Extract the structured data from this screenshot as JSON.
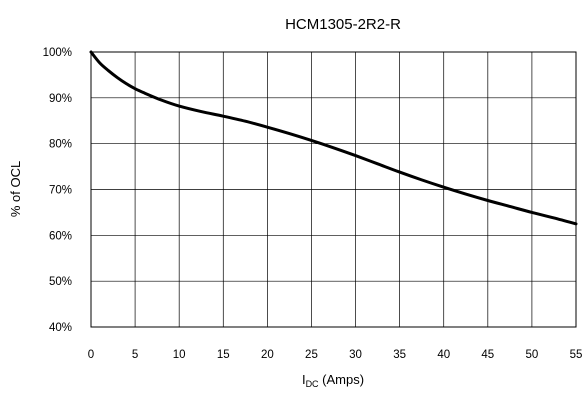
{
  "chart_data": {
    "type": "line",
    "title": "HCM1305-2R2-R",
    "xlabel": {
      "main": "I",
      "sub": "DC",
      "suffix": " (Amps)"
    },
    "ylabel": "% of OCL",
    "xlim": [
      0,
      55
    ],
    "ylim": [
      40,
      100
    ],
    "x_ticks": [
      0,
      5,
      10,
      15,
      20,
      25,
      30,
      35,
      40,
      45,
      50,
      55
    ],
    "x_tick_labels": [
      "0",
      "5",
      "10",
      "15",
      "20",
      "25",
      "30",
      "35",
      "40",
      "45",
      "50",
      "55"
    ],
    "y_ticks": [
      40,
      50,
      60,
      70,
      80,
      90,
      100
    ],
    "y_tick_labels": [
      "40%",
      "50%",
      "60%",
      "70%",
      "80%",
      "90%",
      "100%"
    ],
    "grid": true,
    "legend": "none",
    "series": [
      {
        "x": [
          0,
          1,
          2,
          3,
          4,
          5,
          6,
          8,
          10,
          12.5,
          15,
          17.5,
          20,
          22.5,
          25,
          27.5,
          30,
          32.5,
          35,
          37.5,
          40,
          42.5,
          45,
          47.5,
          50,
          52.5,
          55
        ],
        "y": [
          100,
          97.6,
          95.9,
          94.4,
          93.1,
          92.0,
          91.1,
          89.5,
          88.2,
          87.0,
          86.0,
          84.9,
          83.6,
          82.2,
          80.7,
          79.1,
          77.4,
          75.6,
          73.8,
          72.1,
          70.5,
          69.0,
          67.6,
          66.3,
          65.0,
          63.8,
          62.5
        ],
        "color": "#000000"
      }
    ]
  }
}
